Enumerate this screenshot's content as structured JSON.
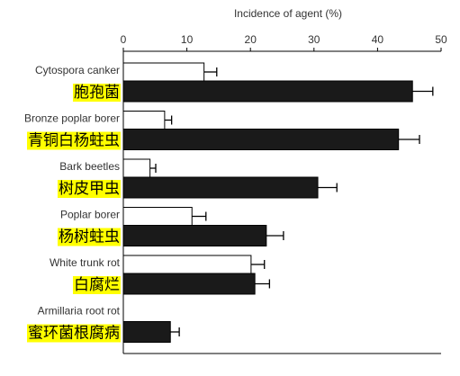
{
  "chart_data": {
    "type": "hbar",
    "xlabel": "Incidence of agent (%)",
    "categories": [
      "Cytospora canker",
      "Bronze poplar borer",
      "Bark beetles",
      "Poplar borer",
      "White trunk rot",
      "Armillaria root rot"
    ],
    "category_translations": [
      "胞孢菌",
      "青铜白杨蛀虫",
      "树皮甲虫",
      "杨树蛀虫",
      "白腐烂",
      "蜜环菌根腐病"
    ],
    "series": [
      {
        "color": "#ffffff",
        "values": [
          12.7,
          6.5,
          4.2,
          10.8,
          20.1,
          null
        ],
        "errors": [
          2.0,
          1.1,
          0.9,
          2.2,
          2.1,
          null
        ]
      },
      {
        "color": "#1a1a1a",
        "values": [
          45.5,
          43.3,
          30.6,
          22.5,
          20.7,
          7.4
        ],
        "errors": [
          3.2,
          3.3,
          3.0,
          2.7,
          2.3,
          1.4
        ]
      }
    ],
    "xlim": [
      0,
      50
    ],
    "xticks": [
      0,
      10,
      20,
      30,
      40,
      50
    ]
  }
}
